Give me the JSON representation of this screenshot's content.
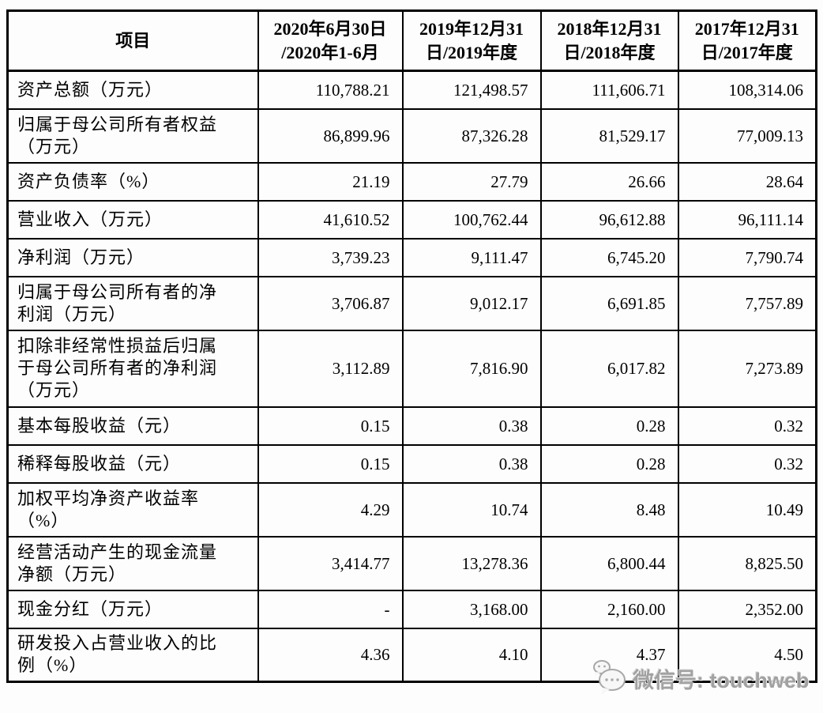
{
  "table": {
    "columns": [
      {
        "label": "项目"
      },
      {
        "label": "2020年6月30日\n/2020年1-6月"
      },
      {
        "label": "2019年12月31\n日/2019年度"
      },
      {
        "label": "2018年12月31\n日/2018年度"
      },
      {
        "label": "2017年12月31\n日/2017年度"
      }
    ],
    "rows": [
      {
        "label": "资产总额（万元）",
        "values": [
          "110,788.21",
          "121,498.57",
          "111,606.71",
          "108,314.06"
        ]
      },
      {
        "label": "归属于母公司所有者权益\n（万元）",
        "values": [
          "86,899.96",
          "87,326.28",
          "81,529.17",
          "77,009.13"
        ]
      },
      {
        "label": "资产负债率（%）",
        "values": [
          "21.19",
          "27.79",
          "26.66",
          "28.64"
        ]
      },
      {
        "label": "营业收入（万元）",
        "values": [
          "41,610.52",
          "100,762.44",
          "96,612.88",
          "96,111.14"
        ]
      },
      {
        "label": "净利润（万元）",
        "values": [
          "3,739.23",
          "9,111.47",
          "6,745.20",
          "7,790.74"
        ]
      },
      {
        "label": "归属于母公司所有者的净\n利润（万元）",
        "values": [
          "3,706.87",
          "9,012.17",
          "6,691.85",
          "7,757.89"
        ]
      },
      {
        "label": "扣除非经常性损益后归属\n于母公司所有者的净利润\n（万元）",
        "values": [
          "3,112.89",
          "7,816.90",
          "6,017.82",
          "7,273.89"
        ]
      },
      {
        "label": "基本每股收益（元）",
        "values": [
          "0.15",
          "0.38",
          "0.28",
          "0.32"
        ]
      },
      {
        "label": "稀释每股收益（元）",
        "values": [
          "0.15",
          "0.38",
          "0.28",
          "0.32"
        ]
      },
      {
        "label": "加权平均净资产收益率\n（%）",
        "values": [
          "4.29",
          "10.74",
          "8.48",
          "10.49"
        ]
      },
      {
        "label": "经营活动产生的现金流量\n净额（万元）",
        "values": [
          "3,414.77",
          "13,278.36",
          "6,800.44",
          "8,825.50"
        ]
      },
      {
        "label": "现金分红（万元）",
        "values": [
          "-",
          "3,168.00",
          "2,160.00",
          "2,352.00"
        ]
      },
      {
        "label": "研发投入占营业收入的比\n例（%）",
        "values": [
          "4.36",
          "4.10",
          "4.37",
          "4.50"
        ]
      }
    ]
  },
  "watermark": {
    "icon": "wechat-icon",
    "text": "微信号: touchweb",
    "color": "#a2a2a2"
  }
}
